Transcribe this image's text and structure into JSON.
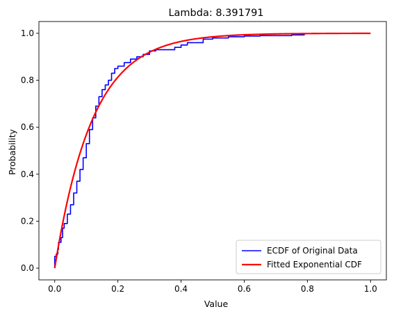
{
  "chart_data": {
    "type": "line",
    "title": "Lambda: 8.391791",
    "xlabel": "Value",
    "ylabel": "Probability",
    "xlim": [
      -0.05,
      1.05
    ],
    "ylim": [
      -0.05,
      1.05
    ],
    "xticks": [
      0.0,
      0.2,
      0.4,
      0.6,
      0.8,
      1.0
    ],
    "xtick_labels": [
      "0.0",
      "0.2",
      "0.4",
      "0.6",
      "0.8",
      "1.0"
    ],
    "yticks": [
      0.0,
      0.2,
      0.4,
      0.6,
      0.8,
      1.0
    ],
    "ytick_labels": [
      "0.0",
      "0.2",
      "0.4",
      "0.6",
      "0.8",
      "1.0"
    ],
    "grid": false,
    "legend_position": "lower-right",
    "series": [
      {
        "name": "ECDF of Original Data",
        "color": "#0000ff",
        "style": "step",
        "points": [
          [
            0.0,
            0.0
          ],
          [
            0.0,
            0.05
          ],
          [
            0.005,
            0.06
          ],
          [
            0.01,
            0.08
          ],
          [
            0.012,
            0.11
          ],
          [
            0.02,
            0.13
          ],
          [
            0.025,
            0.17
          ],
          [
            0.03,
            0.19
          ],
          [
            0.04,
            0.23
          ],
          [
            0.05,
            0.27
          ],
          [
            0.06,
            0.32
          ],
          [
            0.07,
            0.37
          ],
          [
            0.08,
            0.42
          ],
          [
            0.09,
            0.47
          ],
          [
            0.1,
            0.53
          ],
          [
            0.11,
            0.59
          ],
          [
            0.12,
            0.64
          ],
          [
            0.13,
            0.69
          ],
          [
            0.14,
            0.73
          ],
          [
            0.15,
            0.76
          ],
          [
            0.16,
            0.78
          ],
          [
            0.17,
            0.8
          ],
          [
            0.18,
            0.83
          ],
          [
            0.19,
            0.85
          ],
          [
            0.2,
            0.86
          ],
          [
            0.22,
            0.875
          ],
          [
            0.24,
            0.89
          ],
          [
            0.26,
            0.9
          ],
          [
            0.28,
            0.91
          ],
          [
            0.3,
            0.925
          ],
          [
            0.32,
            0.93
          ],
          [
            0.36,
            0.93
          ],
          [
            0.38,
            0.94
          ],
          [
            0.4,
            0.95
          ],
          [
            0.42,
            0.96
          ],
          [
            0.45,
            0.96
          ],
          [
            0.47,
            0.975
          ],
          [
            0.5,
            0.98
          ],
          [
            0.55,
            0.985
          ],
          [
            0.6,
            0.988
          ],
          [
            0.65,
            0.99
          ],
          [
            0.7,
            0.99
          ],
          [
            0.75,
            0.993
          ],
          [
            0.79,
            0.996
          ]
        ]
      },
      {
        "name": "Fitted Exponential CDF",
        "color": "#ff0000",
        "style": "exponential-cdf",
        "lambda": 8.391791,
        "x_range": [
          0.0,
          1.0
        ]
      }
    ]
  }
}
